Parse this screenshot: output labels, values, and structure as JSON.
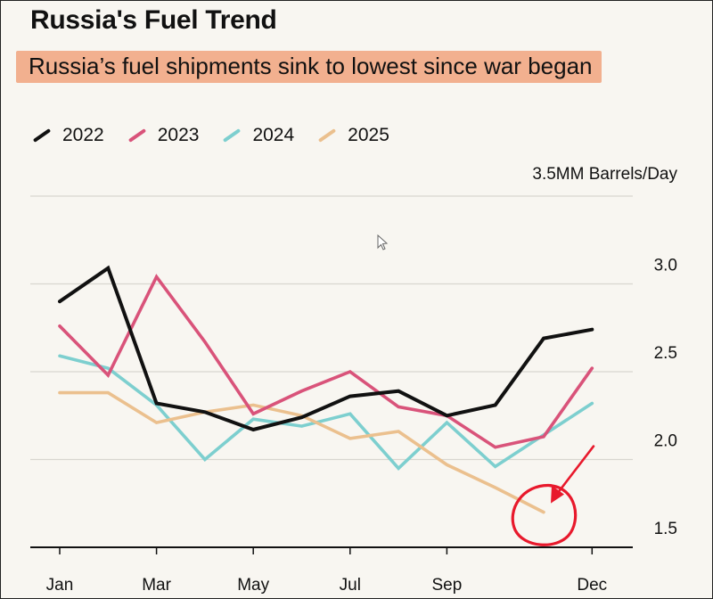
{
  "title": "Russia's Fuel Trend",
  "subtitle": "Russia’s fuel shipments sink to lowest since war began",
  "unit_label": "3.5MM Barrels/Day",
  "chart_data": {
    "type": "line",
    "title": "Russia's Fuel Trend",
    "subtitle": "Russia’s fuel shipments sink to lowest since war began",
    "ylabel": "3.5MM Barrels/Day",
    "ylim": [
      1.5,
      3.5
    ],
    "yticks": [
      1.5,
      2.0,
      2.5,
      3.0
    ],
    "ytick_labels": [
      "1.5",
      "2.0",
      "2.5",
      "3.0"
    ],
    "months": [
      1,
      2,
      3,
      4,
      5,
      6,
      7,
      8,
      9,
      10,
      11,
      12
    ],
    "xtick_months": [
      1,
      3,
      5,
      7,
      9,
      12
    ],
    "xtick_labels": [
      "Jan",
      "Mar",
      "May",
      "Jul",
      "Sep",
      "Dec"
    ],
    "series": [
      {
        "name": "2022",
        "color": "#111111",
        "values": [
          2.9,
          3.09,
          2.32,
          2.27,
          2.17,
          2.24,
          2.36,
          2.39,
          2.25,
          2.31,
          2.69,
          2.74
        ]
      },
      {
        "name": "2023",
        "color": "#d9537a",
        "values": [
          2.76,
          2.48,
          3.04,
          2.67,
          2.26,
          2.39,
          2.5,
          2.3,
          2.25,
          2.07,
          2.13,
          2.52
        ]
      },
      {
        "name": "2024",
        "color": "#7dcfcf",
        "values": [
          2.59,
          2.52,
          2.31,
          2.0,
          2.23,
          2.19,
          2.26,
          1.95,
          2.21,
          1.96,
          2.14,
          2.32
        ]
      },
      {
        "name": "2025",
        "color": "#ebc08e",
        "values": [
          2.38,
          2.38,
          2.21,
          2.27,
          2.31,
          2.25,
          2.12,
          2.16,
          1.97,
          1.84,
          1.7
        ]
      }
    ],
    "annotation": {
      "type": "circle-with-arrow",
      "color": "#e8192c",
      "target_series": "2025",
      "target_month": 11
    }
  }
}
